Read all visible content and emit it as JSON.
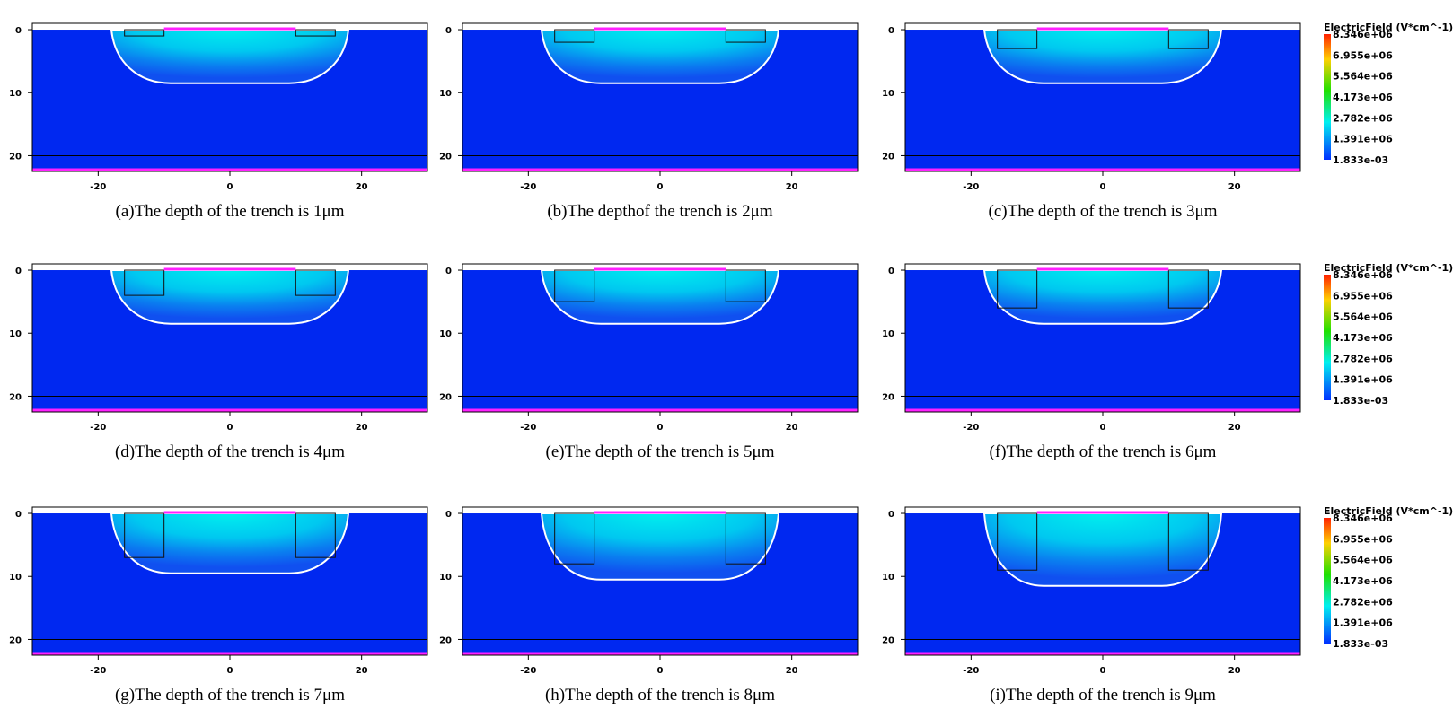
{
  "figure": {
    "xlim": [
      -30,
      30
    ],
    "xticks": [
      -20,
      0,
      20
    ],
    "ylim": [
      -1,
      22.5
    ],
    "yticks": [
      0,
      10,
      20
    ],
    "colorbar": {
      "title": "ElectricField (V*cm^-1)",
      "labels": [
        "8.346e+06",
        "6.955e+06",
        "5.564e+06",
        "4.173e+06",
        "2.782e+06",
        "1.391e+06",
        "1.833e-03"
      ]
    },
    "panels": [
      {
        "caption": "(a)The depth of the trench is 1μm",
        "trench_depth": 1
      },
      {
        "caption": "(b)The depthof the trench is 2μm",
        "trench_depth": 2
      },
      {
        "caption": "(c)The depth of the trench is 3μm",
        "trench_depth": 3
      },
      {
        "caption": "(d)The depth of the trench is 4μm",
        "trench_depth": 4
      },
      {
        "caption": "(e)The depth of the trench is 5μm",
        "trench_depth": 5
      },
      {
        "caption": "(f)The depth of the trench is 6μm",
        "trench_depth": 6
      },
      {
        "caption": "(g)The depth of the trench is 7μm",
        "trench_depth": 7
      },
      {
        "caption": "(h)The depth of the trench is 8μm",
        "trench_depth": 8
      },
      {
        "caption": "(i)The depth of the trench is 9μm",
        "trench_depth": 9
      }
    ]
  }
}
